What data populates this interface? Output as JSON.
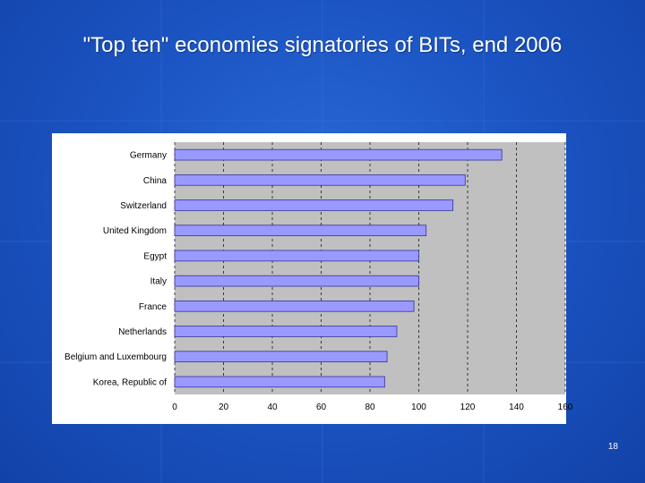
{
  "slide": {
    "title": "\"Top ten\" economies signatories of BITs, end 2006",
    "number": "18"
  },
  "colors": {
    "background": "#1c55c4",
    "plot_area": "#c0c0c0",
    "bar_fill": "#9999ff",
    "bar_stroke": "#333399"
  },
  "chart_data": {
    "type": "bar",
    "orientation": "horizontal",
    "title": "",
    "xlabel": "",
    "ylabel": "",
    "categories": [
      "Germany",
      "China",
      "Switzerland",
      "United Kingdom",
      "Egypt",
      "Italy",
      "France",
      "Netherlands",
      "Belgium and Luxembourg",
      "Korea, Republic of"
    ],
    "values": [
      134,
      119,
      114,
      103,
      100,
      100,
      98,
      91,
      87,
      86
    ],
    "xlim": [
      0,
      160
    ],
    "xticks": [
      "0",
      "20",
      "40",
      "60",
      "80",
      "100",
      "120",
      "140",
      "160"
    ],
    "grid": true,
    "legend": false
  }
}
